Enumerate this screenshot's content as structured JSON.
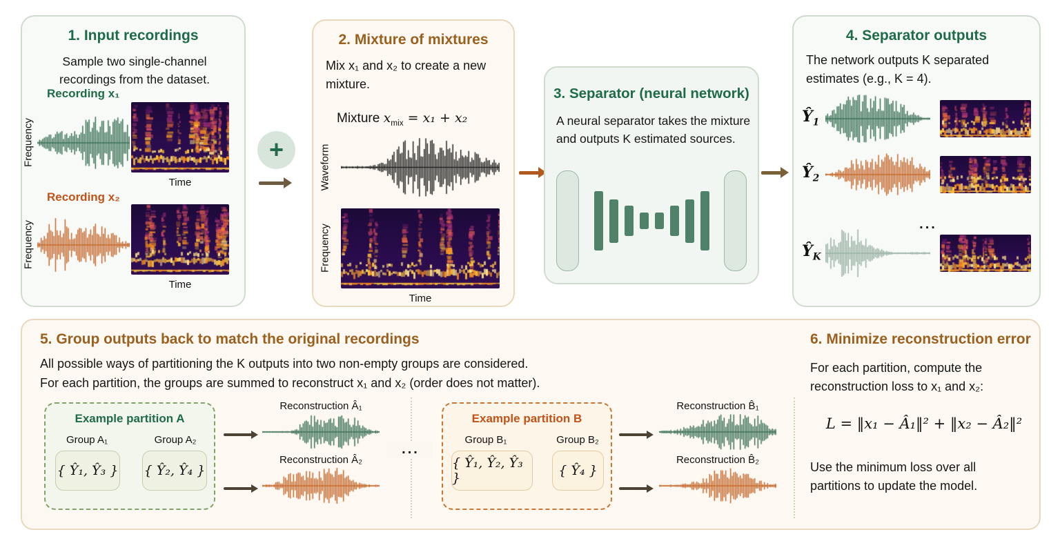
{
  "colors": {
    "green_title": "#1f6b47",
    "brown_title": "#99601f",
    "orange_title": "#c25318",
    "green_wave": "#2d6649",
    "orange_wave": "#c05d1d",
    "sage_wave": "#92ab9d",
    "black_wave": "#141414",
    "nn_bar": "#4f8268",
    "plus_circle_bg": "#d8e5da"
  },
  "panel1": {
    "title": "1. Input recordings",
    "subtitle": "Sample two single-channel recordings from the dataset.",
    "recording1_label": "Recording x₁",
    "recording2_label": "Recording x₂",
    "frequency_label": "Frequency",
    "time_label": "Time"
  },
  "connectors": {
    "plus_icon": "+",
    "ellipsis": "..."
  },
  "panel2": {
    "title": "2. Mixture of mixtures",
    "desc": "Mix x₁ and x₂ to create a new mixture.",
    "formula_pre": "Mixture ",
    "formula_var": "x",
    "formula_sub": "mix",
    "formula_rest": " = x₁ + x₂",
    "waveform_label": "Waveform",
    "frequency_label": "Frequency",
    "time_label": "Time"
  },
  "panel3": {
    "title": "3. Separator (neural network)",
    "desc": "A neural separator takes the mixture and outputs K estimated sources.",
    "bars": [
      86,
      63,
      44,
      24,
      24,
      44,
      63,
      86
    ]
  },
  "panel4": {
    "title": "4. Separator outputs",
    "desc": "The network outputs K separated estimates (e.g., K = 4).",
    "rows": [
      {
        "main": "Ŷ",
        "sub": "1"
      },
      {
        "main": "Ŷ",
        "sub": "2"
      },
      {
        "main": "Ŷ",
        "sub": "K"
      }
    ],
    "ellipsis": "..."
  },
  "panel5": {
    "title": "5. Group outputs back to match the original recordings",
    "line1": "All possible ways of partitioning the K outputs into two non-empty groups are considered.",
    "line2": "For each partition, the groups are summed to reconstruct x₁ and x₂ (order does not matter).",
    "partition_a": {
      "title": "Example partition A",
      "group1_label": "Group A₁",
      "group1_set": "{ Ŷ₁, Ŷ₃ }",
      "group2_label": "Group A₂",
      "group2_set": "{ Ŷ₂, Ŷ₄ }",
      "recon1_label": "Reconstruction Â₁",
      "recon2_label": "Reconstruction Â₂"
    },
    "partition_b": {
      "title": "Example partition B",
      "group1_label": "Group B₁",
      "group1_set": "{ Ŷ₁, Ŷ₂, Ŷ₃ }",
      "group2_label": "Group B₂",
      "group2_set": "{ Ŷ₄ }",
      "recon1_label": "Reconstruction B̂₁",
      "recon2_label": "Reconstruction B̂₂"
    },
    "ellipsis": "..."
  },
  "panel6": {
    "title": "6. Minimize reconstruction error",
    "desc": "For each partition, compute the reconstruction loss to x₁ and x₂:",
    "formula": "L = ‖x₁ − Â₁‖² + ‖x₂ − Â₂‖²",
    "note": "Use the minimum loss over all partitions to update the model."
  }
}
